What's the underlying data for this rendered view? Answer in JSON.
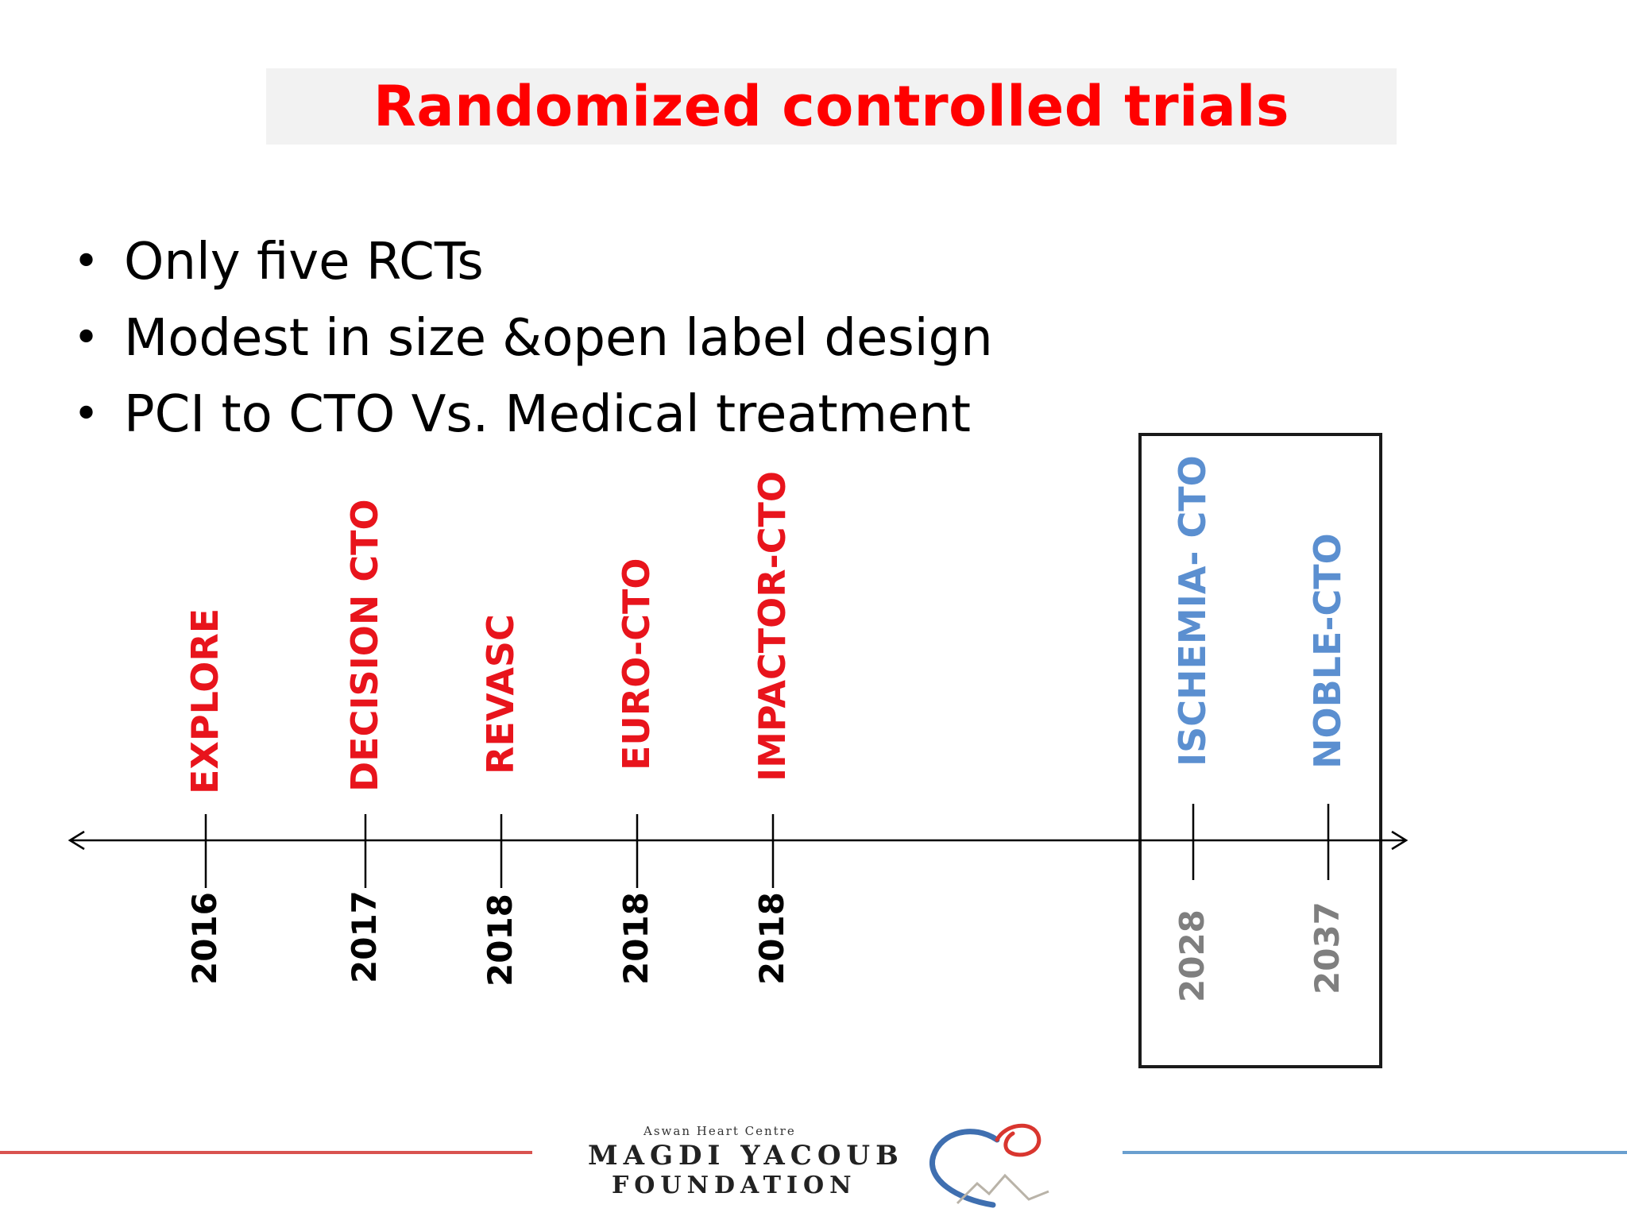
{
  "title": "Randomized controlled trials",
  "bullets": [
    "Only five RCTs",
    "Modest in size &open label design",
    "PCI to CTO Vs. Medical treatment"
  ],
  "bullet_symbol": "•",
  "timeline": {
    "trials": [
      {
        "name": "EXPLORE",
        "year": "2016",
        "status": "past"
      },
      {
        "name": "DECISION CTO",
        "year": "2017",
        "status": "past"
      },
      {
        "name": "REVASC",
        "year": "2018",
        "status": "past"
      },
      {
        "name": "EURO-CTO",
        "year": "2018",
        "status": "past"
      },
      {
        "name": "IMPACTOR-CTO",
        "year": "2018",
        "status": "past"
      },
      {
        "name": "ISCHEMIA- CTO",
        "year": "2028",
        "status": "future"
      },
      {
        "name": "NOBLE-CTO",
        "year": "2037",
        "status": "future"
      }
    ],
    "colors": {
      "past_trial": "#e8141c",
      "past_year": "#000000",
      "future_trial": "#5b8fd0",
      "future_year": "#7f7f7f"
    }
  },
  "logo": {
    "small_text": "Aswan Heart Centre",
    "main_text": "MAGDI YACOUB",
    "sub_text": "FOUNDATION"
  }
}
